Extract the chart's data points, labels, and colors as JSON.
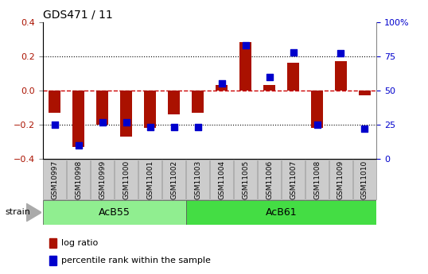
{
  "title": "GDS471 / 11",
  "samples": [
    "GSM10997",
    "GSM10998",
    "GSM10999",
    "GSM11000",
    "GSM11001",
    "GSM11002",
    "GSM11003",
    "GSM11004",
    "GSM11005",
    "GSM11006",
    "GSM11007",
    "GSM11008",
    "GSM11009",
    "GSM11010"
  ],
  "log_ratio": [
    -0.13,
    -0.33,
    -0.2,
    -0.27,
    -0.22,
    -0.14,
    -0.13,
    0.03,
    0.28,
    0.03,
    0.16,
    -0.22,
    0.17,
    -0.03
  ],
  "percentile": [
    25,
    10,
    27,
    27,
    23,
    23,
    23,
    55,
    83,
    60,
    78,
    25,
    77,
    22
  ],
  "groups": [
    {
      "label": "AcB55",
      "start": 0,
      "end": 6,
      "color": "#90ee90"
    },
    {
      "label": "AcB61",
      "start": 6,
      "end": 14,
      "color": "#44dd44"
    }
  ],
  "group_label": "strain",
  "ylim": [
    -0.4,
    0.4
  ],
  "yticks": [
    -0.4,
    -0.2,
    0.0,
    0.2,
    0.4
  ],
  "y2ticks": [
    0,
    25,
    50,
    75,
    100
  ],
  "y2labels": [
    "0",
    "25",
    "50",
    "75",
    "100%"
  ],
  "bar_color": "#aa1100",
  "dot_color": "#0000cc",
  "zero_line_color": "#cc0000",
  "bg_color": "#ffffff",
  "bar_width": 0.5,
  "dot_size": 30,
  "tick_bg": "#cccccc",
  "tick_edge": "#999999",
  "legend_items": [
    "log ratio",
    "percentile rank within the sample"
  ]
}
